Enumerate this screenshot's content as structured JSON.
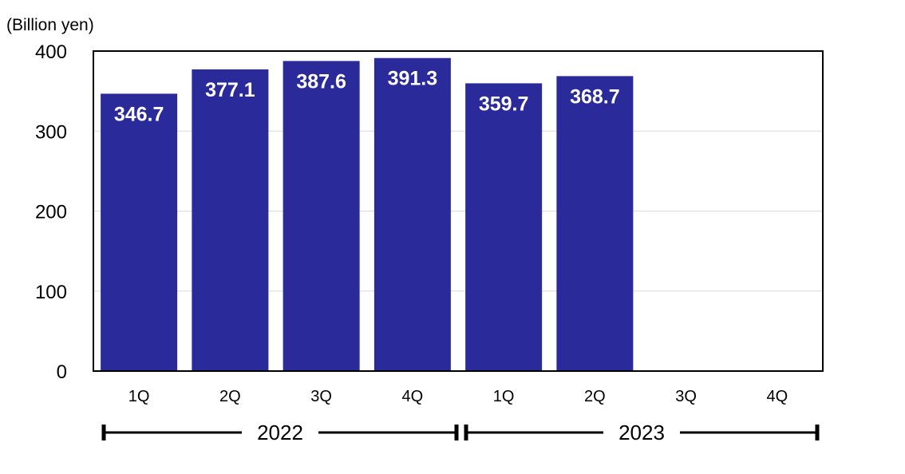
{
  "chart_data": {
    "type": "bar",
    "ylabel": "(Billion yen)",
    "ylim": [
      0,
      400
    ],
    "yticks": [
      "0",
      "100",
      "200",
      "300",
      "400"
    ],
    "ytick_values": [
      0,
      100,
      200,
      300,
      400
    ],
    "grid": "horizontal",
    "categories": [
      "1Q",
      "2Q",
      "3Q",
      "4Q",
      "1Q",
      "2Q",
      "3Q",
      "4Q"
    ],
    "values": [
      346.7,
      377.1,
      387.6,
      391.3,
      359.7,
      368.7,
      null,
      null
    ],
    "data_labels": [
      "346.7",
      "377.1",
      "387.6",
      "391.3",
      "359.7",
      "368.7",
      "",
      ""
    ],
    "groups": [
      {
        "label": "2022",
        "start": 0,
        "end": 3
      },
      {
        "label": "2023",
        "start": 4,
        "end": 7
      }
    ],
    "bar_color": "#2b2a9a",
    "label_color": "#ffffff",
    "grid_color": "#d9d9d9"
  }
}
